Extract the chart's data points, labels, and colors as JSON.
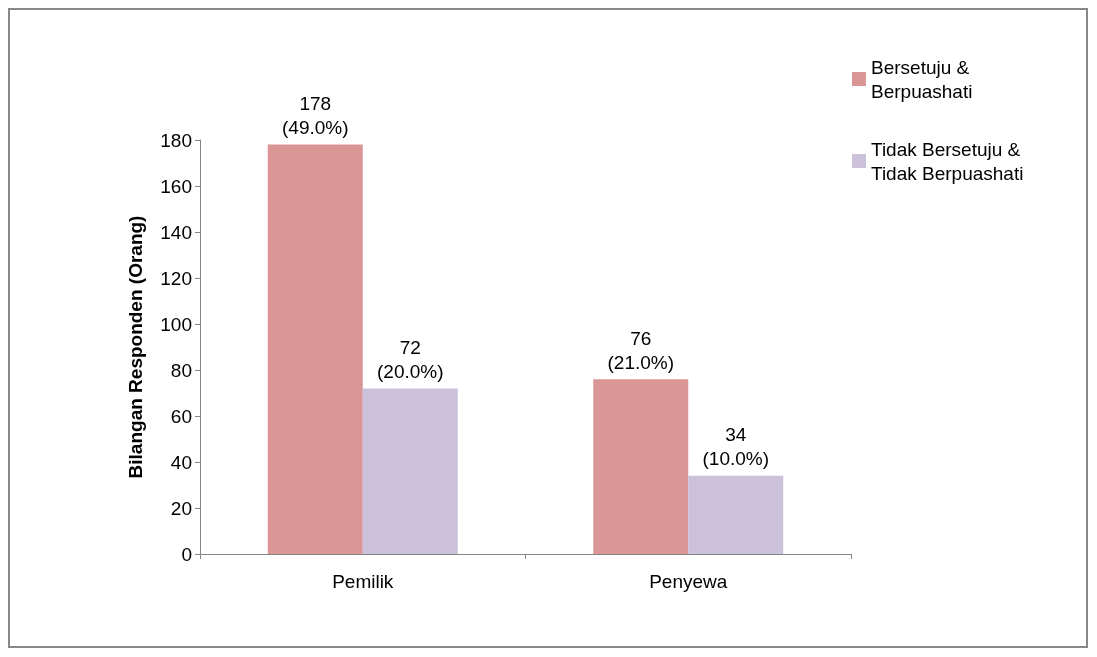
{
  "chart_data": {
    "type": "bar",
    "ylabel": "Bilangan Responden (Orang)",
    "categories": [
      "Pemilik",
      "Penyewa"
    ],
    "series": [
      {
        "name": "Bersetuju & Berpuashati",
        "color": "#d99694",
        "values": [
          178,
          76
        ],
        "value_labels": [
          "178\n(49.0%)",
          "76\n(21.0%)"
        ]
      },
      {
        "name": "Tidak Bersetuju & Tidak Berpuashati",
        "color": "#ccc1da",
        "values": [
          72,
          34
        ],
        "value_labels": [
          "72\n(20.0%)",
          "34\n(10.0%)"
        ]
      }
    ],
    "ylim": [
      0,
      180
    ],
    "yticks": [
      0,
      20,
      40,
      60,
      80,
      100,
      120,
      140,
      160,
      180
    ],
    "grid": false,
    "legend": "top right"
  }
}
